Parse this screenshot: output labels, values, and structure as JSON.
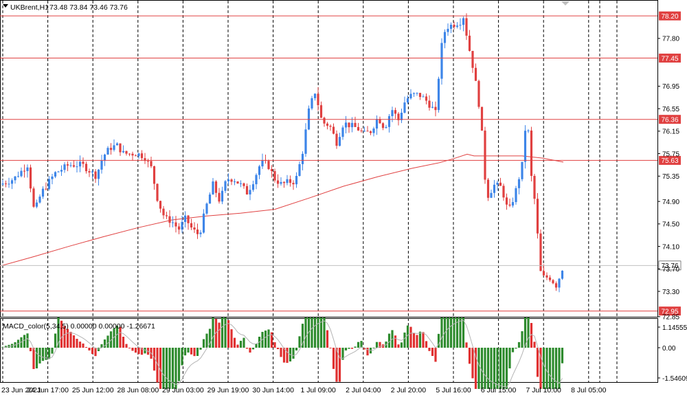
{
  "header": {
    "menu_icon": "triangle-down-icon",
    "symbol_label": "UKBrent,H1",
    "ohlc_text": "73.48 73.84 73.46 73.76",
    "corner_icon": "triangle-down-icon"
  },
  "colors": {
    "up": "#3d85e8",
    "down": "#e04040",
    "hline": "#e04040",
    "ma": "#e04040",
    "macd_up": "#2e8b2e",
    "macd_down": "#e03030",
    "signal": "#b4b4b4",
    "current_price_bg": "#ffffff",
    "grid": "#000000"
  },
  "chart_data": [
    {
      "type": "candlestick",
      "title": "UKBrent,H1",
      "ylim": [
        72.85,
        78.5
      ],
      "y_ticks": [
        "78.20",
        "77.80",
        "77.45",
        "76.95",
        "76.55",
        "76.15",
        "75.75",
        "75.35",
        "74.90",
        "74.50",
        "74.10",
        "73.70",
        "73.30",
        "72.85"
      ],
      "x_ticks": [
        "23 Jun 2021",
        "24 Jun 17:00",
        "25 Jun 12:00",
        "28 Jun 08:00",
        "29 Jun 03:00",
        "29 Jun 19:00",
        "30 Jun 14:00",
        "1 Jul 09:00",
        "2 Jul 04:00",
        "2 Jul 20:00",
        "5 Jul 16:00",
        "6 Jul 15:00",
        "7 Jul 10:00",
        "8 Jul 05:00"
      ],
      "horizontal_levels": [
        {
          "label": "78.20",
          "value": 78.2
        },
        {
          "label": "77.45",
          "value": 77.45
        },
        {
          "label": "76.36",
          "value": 76.36
        },
        {
          "label": "75.63",
          "value": 75.63
        },
        {
          "label": "72.95",
          "value": 72.95
        }
      ],
      "current_price": {
        "label": "73.76",
        "value": 73.76
      },
      "last_ohlc": {
        "open": 73.48,
        "high": 73.84,
        "low": 73.46,
        "close": 73.76
      },
      "moving_average": {
        "x": [
          0,
          50,
          100,
          150,
          200,
          250,
          300,
          350,
          400,
          450,
          500,
          550,
          600,
          640,
          660,
          680,
          690,
          720,
          760,
          790,
          820
        ],
        "y": [
          73.75,
          73.92,
          74.1,
          74.27,
          74.43,
          74.57,
          74.64,
          74.69,
          74.76,
          74.96,
          75.17,
          75.34,
          75.49,
          75.59,
          75.66,
          75.74,
          75.71,
          75.71,
          75.71,
          75.67,
          75.6
        ]
      },
      "close_path": {
        "x": [
          0,
          20,
          40,
          50,
          60,
          80,
          100,
          120,
          140,
          150,
          160,
          170,
          180,
          200,
          210,
          220,
          230,
          240,
          250,
          260,
          270,
          280,
          290,
          300,
          310,
          320,
          330,
          340,
          350,
          360,
          370,
          380,
          390,
          400,
          410,
          420,
          430,
          440,
          450,
          460,
          465,
          470,
          480,
          490,
          500,
          510,
          520,
          530,
          540,
          550,
          560,
          570,
          580,
          590,
          600,
          610,
          620,
          630,
          635,
          640,
          645,
          650,
          660,
          670,
          675,
          680,
          690,
          700,
          705,
          710,
          720,
          730,
          740,
          750,
          760,
          765,
          770,
          775,
          780,
          785,
          790,
          800,
          810,
          820
        ],
        "y": [
          75.2,
          75.3,
          75.55,
          74.7,
          75.05,
          75.4,
          75.55,
          75.55,
          75.35,
          75.7,
          75.85,
          75.9,
          75.75,
          75.75,
          75.7,
          75.5,
          74.9,
          74.6,
          74.55,
          74.4,
          74.6,
          74.4,
          74.3,
          74.8,
          75.2,
          74.9,
          75.3,
          75.3,
          75.2,
          75.05,
          75.3,
          75.6,
          75.55,
          75.3,
          75.2,
          75.25,
          75.25,
          75.75,
          76.55,
          76.9,
          76.45,
          76.3,
          76.25,
          75.95,
          76.3,
          76.25,
          76.2,
          76.1,
          76.15,
          76.4,
          76.2,
          76.55,
          76.35,
          76.7,
          76.8,
          76.8,
          76.7,
          76.55,
          76.45,
          77.4,
          77.85,
          78.0,
          78.05,
          78.1,
          78.2,
          77.8,
          77.2,
          76.4,
          75.4,
          75.0,
          75.2,
          75.15,
          74.7,
          75.05,
          75.55,
          76.25,
          76.1,
          75.0,
          74.9,
          73.7,
          73.55,
          73.55,
          73.4,
          73.76
        ]
      }
    },
    {
      "type": "bar",
      "title": "MACD_color(5,34,5)",
      "legend_text": "MACD_color(5,34,5) 0.00000 0.00000 -1.26671",
      "y_ticks": [
        "1.14555",
        "0.00",
        "-1.54609"
      ],
      "ylim": [
        -1.54609,
        1.14555
      ],
      "histogram_x": [
        0,
        820
      ],
      "signal_shape": "smoothed"
    }
  ]
}
